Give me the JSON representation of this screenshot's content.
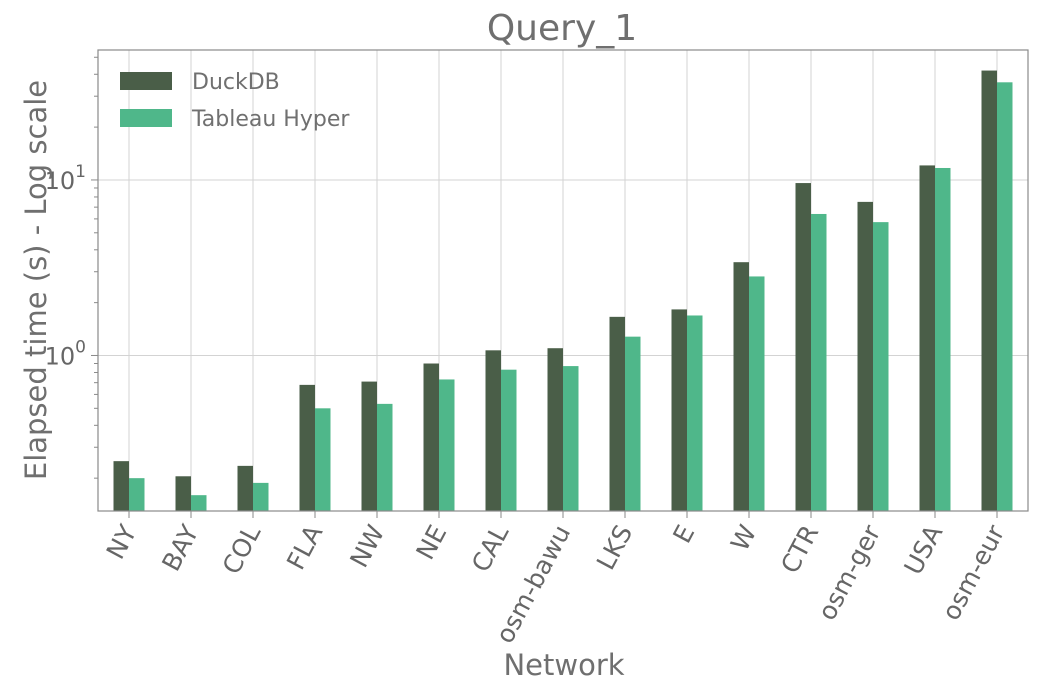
{
  "chart_data": {
    "type": "bar",
    "title": "Query_1",
    "xlabel": "Network",
    "ylabel": "Elapsed time (s) - Log scale",
    "yscale": "log",
    "ylim": [
      0.13,
      55
    ],
    "yticks": [
      {
        "value": 1,
        "base": "10",
        "exp": "0"
      },
      {
        "value": 10,
        "base": "10",
        "exp": "1"
      }
    ],
    "grid": true,
    "legend_position": "top-left",
    "categories": [
      "NY",
      "BAY",
      "COL",
      "FLA",
      "NW",
      "NE",
      "CAL",
      "osm-bawu",
      "LKS",
      "E",
      "W",
      "CTR",
      "osm-ger",
      "USA",
      "osm-eur"
    ],
    "series": [
      {
        "name": "DuckDB",
        "color": "#4a5e48",
        "values": [
          0.25,
          0.205,
          0.235,
          0.68,
          0.71,
          0.9,
          1.07,
          1.1,
          1.66,
          1.83,
          3.4,
          9.6,
          7.5,
          12.1,
          42
        ]
      },
      {
        "name": "Tableau Hyper",
        "color": "#4fb78a",
        "values": [
          0.2,
          0.16,
          0.188,
          0.5,
          0.53,
          0.73,
          0.83,
          0.87,
          1.28,
          1.69,
          2.82,
          6.4,
          5.75,
          11.7,
          36
        ]
      }
    ]
  }
}
